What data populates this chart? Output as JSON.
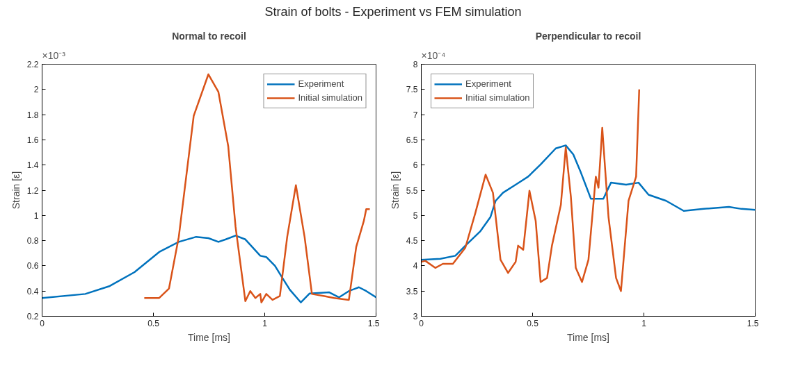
{
  "chart_data": [
    {
      "type": "line",
      "title": "Normal to recoil",
      "xlabel": "Time [ms]",
      "ylabel": "Strain [ε]",
      "annotations": [
        "Strain of bolts - Experiment vs FEM simulation",
        "×10⁻³"
      ],
      "xlim": [
        0,
        1.5
      ],
      "xticks": [
        0,
        0.5,
        1,
        1.5
      ],
      "ylim": [
        0.2,
        2.2
      ],
      "yticks": [
        0.2,
        0.4,
        0.6,
        0.8,
        1,
        1.2,
        1.4,
        1.6,
        1.8,
        2,
        2.2
      ],
      "grid": false,
      "legend": "top right",
      "line_style": "solid",
      "marker": "none",
      "series": [
        {
          "name": "Experiment",
          "color": "#0072bd",
          "x": [
            0,
            0.194,
            0.304,
            0.415,
            0.526,
            0.614,
            0.692,
            0.747,
            0.792,
            0.825,
            0.869,
            0.913,
            0.98,
            1.007,
            1.046,
            1.079,
            1.113,
            1.162,
            1.201,
            1.29,
            1.334,
            1.378,
            1.423,
            1.456,
            1.5
          ],
          "values": [
            0.345,
            0.377,
            0.44,
            0.55,
            0.71,
            0.79,
            0.83,
            0.82,
            0.79,
            0.81,
            0.84,
            0.81,
            0.68,
            0.67,
            0.6,
            0.505,
            0.41,
            0.31,
            0.38,
            0.39,
            0.35,
            0.4,
            0.43,
            0.4,
            0.35
          ]
        },
        {
          "name": "Initial simulation",
          "color": "#d95319",
          "x": [
            0.459,
            0.526,
            0.57,
            0.614,
            0.681,
            0.747,
            0.792,
            0.836,
            0.869,
            0.913,
            0.935,
            0.958,
            0.98,
            0.985,
            1.007,
            1.035,
            1.068,
            1.101,
            1.14,
            1.179,
            1.212,
            1.268,
            1.312,
            1.378,
            1.411,
            1.445,
            1.456,
            1.472
          ],
          "values": [
            0.345,
            0.345,
            0.42,
            0.83,
            1.79,
            2.12,
            1.98,
            1.55,
            0.91,
            0.32,
            0.4,
            0.345,
            0.377,
            0.31,
            0.377,
            0.33,
            0.36,
            0.83,
            1.24,
            0.83,
            0.377,
            0.36,
            0.345,
            0.33,
            0.75,
            0.955,
            1.05,
            1.05
          ]
        }
      ]
    },
    {
      "type": "line",
      "title": "Perpendicular to recoil",
      "xlabel": "Time [ms]",
      "ylabel": "Strain [ε]",
      "annotations": [
        "×10⁻⁴"
      ],
      "xlim": [
        0,
        1.5
      ],
      "xticks": [
        0,
        0.5,
        1,
        1.5
      ],
      "ylim": [
        3,
        8
      ],
      "yticks": [
        3,
        3.5,
        4,
        4.5,
        5,
        5.5,
        6,
        6.5,
        7,
        7.5,
        8
      ],
      "grid": false,
      "legend": "top left",
      "line_style": "solid",
      "marker": "none",
      "series": [
        {
          "name": "Experiment",
          "color": "#0072bd",
          "x": [
            0,
            0.086,
            0.153,
            0.198,
            0.266,
            0.311,
            0.334,
            0.367,
            0.424,
            0.48,
            0.536,
            0.604,
            0.649,
            0.683,
            0.717,
            0.762,
            0.818,
            0.852,
            0.92,
            0.976,
            1.021,
            1.1,
            1.179,
            1.269,
            1.382,
            1.438,
            1.5
          ],
          "values": [
            4.12,
            4.14,
            4.2,
            4.4,
            4.69,
            4.97,
            5.29,
            5.45,
            5.61,
            5.77,
            6.01,
            6.33,
            6.39,
            6.21,
            5.85,
            5.33,
            5.33,
            5.65,
            5.61,
            5.65,
            5.41,
            5.29,
            5.09,
            5.13,
            5.17,
            5.13,
            5.11
          ]
        },
        {
          "name": "Initial simulation",
          "color": "#d95319",
          "x": [
            0,
            0.018,
            0.063,
            0.097,
            0.142,
            0.198,
            0.243,
            0.289,
            0.322,
            0.356,
            0.39,
            0.424,
            0.435,
            0.458,
            0.486,
            0.514,
            0.536,
            0.565,
            0.587,
            0.627,
            0.649,
            0.672,
            0.694,
            0.722,
            0.751,
            0.784,
            0.796,
            0.813,
            0.841,
            0.875,
            0.897,
            0.931,
            0.965,
            0.979
          ],
          "values": [
            4.08,
            4.1,
            3.96,
            4.04,
            4.04,
            4.36,
            5.05,
            5.81,
            5.45,
            4.12,
            3.86,
            4.08,
            4.4,
            4.32,
            5.49,
            4.89,
            3.68,
            3.76,
            4.4,
            5.21,
            6.35,
            5.37,
            3.96,
            3.68,
            4.12,
            5.77,
            5.55,
            6.74,
            4.97,
            3.76,
            3.5,
            5.29,
            5.77,
            7.5
          ]
        }
      ]
    }
  ]
}
